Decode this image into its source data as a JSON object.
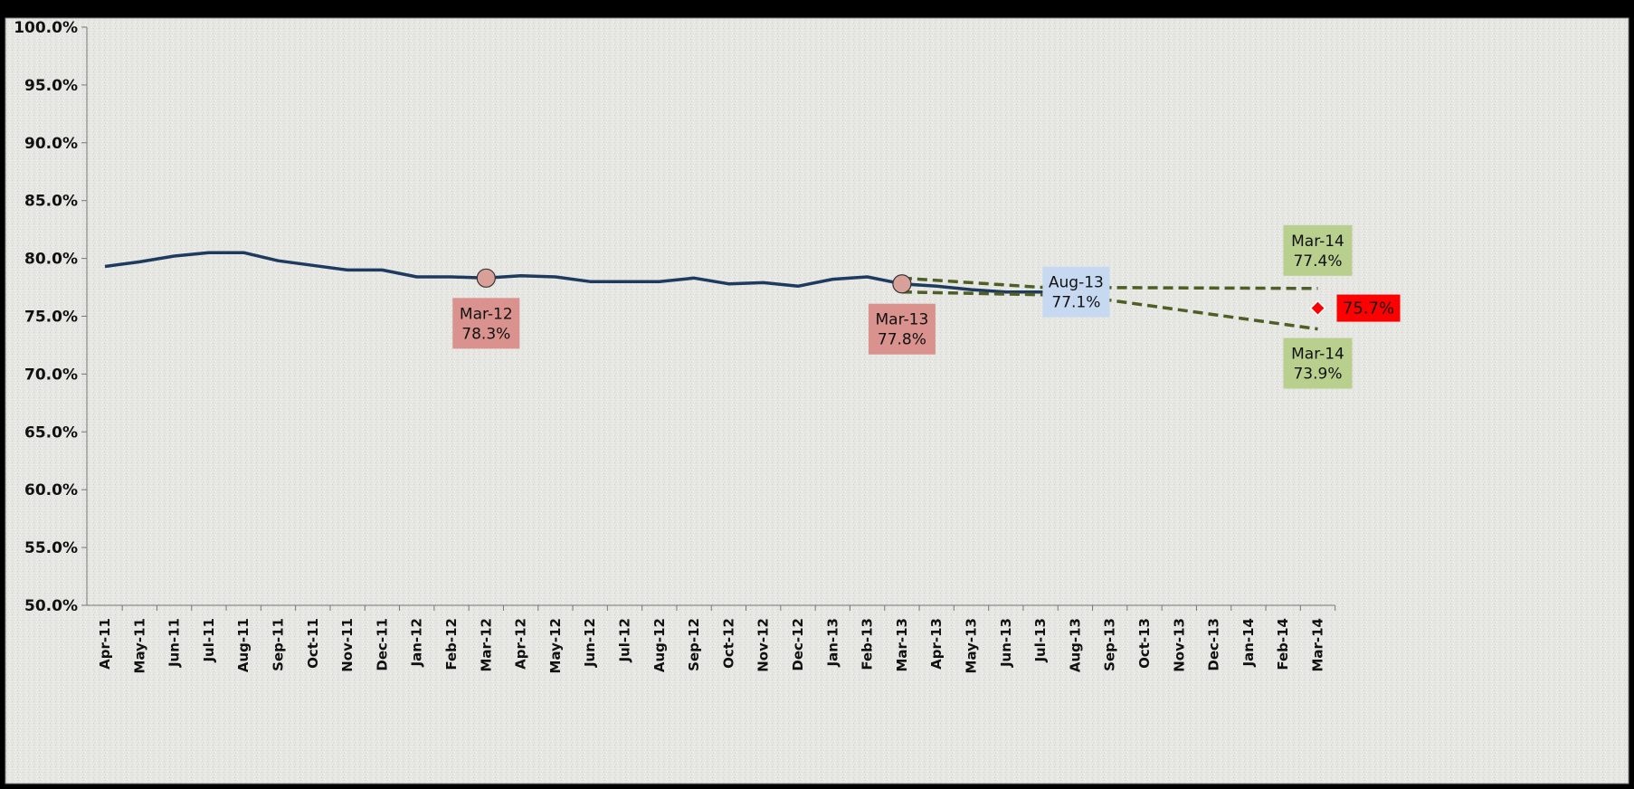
{
  "chart_data": {
    "type": "line",
    "title": "",
    "xlabel": "",
    "ylabel": "",
    "ylim": [
      0.5,
      1.0
    ],
    "y_ticks": [
      "50.0%",
      "55.0%",
      "60.0%",
      "65.0%",
      "70.0%",
      "75.0%",
      "80.0%",
      "85.0%",
      "90.0%",
      "95.0%",
      "100.0%"
    ],
    "y_tick_values": [
      0.5,
      0.55,
      0.6,
      0.65,
      0.7,
      0.75,
      0.8,
      0.85,
      0.9,
      0.95,
      1.0
    ],
    "categories": [
      "Apr-11",
      "May-11",
      "Jun-11",
      "Jul-11",
      "Aug-11",
      "Sep-11",
      "Oct-11",
      "Nov-11",
      "Dec-11",
      "Jan-12",
      "Feb-12",
      "Mar-12",
      "Apr-12",
      "May-12",
      "Jun-12",
      "Jul-12",
      "Aug-12",
      "Sep-12",
      "Oct-12",
      "Nov-12",
      "Dec-12",
      "Jan-13",
      "Feb-13",
      "Mar-13",
      "Apr-13",
      "May-13",
      "Jun-13",
      "Jul-13",
      "Aug-13",
      "Sep-13",
      "Oct-13",
      "Nov-13",
      "Dec-13",
      "Jan-14",
      "Feb-14",
      "Mar-14"
    ],
    "grid": false,
    "series": [
      {
        "color": "#1f3a5f",
        "style": "solid",
        "values": [
          0.793,
          0.797,
          0.802,
          0.805,
          0.805,
          0.798,
          0.794,
          0.79,
          0.79,
          0.784,
          0.784,
          0.783,
          0.785,
          0.784,
          0.78,
          0.78,
          0.78,
          0.783,
          0.778,
          0.779,
          0.776,
          0.782,
          0.784,
          0.778,
          0.776,
          0.773,
          0.771,
          0.771,
          0.771,
          null,
          null,
          null,
          null,
          null,
          null,
          null
        ]
      },
      {
        "color": "#4e5e24",
        "style": "dashed",
        "points": [
          [
            "Mar-13",
            0.783
          ],
          [
            "Jul-13",
            0.775
          ],
          [
            "Mar-14",
            0.774
          ]
        ]
      },
      {
        "color": "#4e5e24",
        "style": "dashed",
        "points": [
          [
            "Mar-13",
            0.771
          ],
          [
            "Aug-13",
            0.768
          ],
          [
            "Mar-14",
            0.739
          ]
        ]
      }
    ],
    "markers": [
      {
        "x": "Mar-12",
        "y": 0.783,
        "shape": "circle",
        "color": "#d9a09a"
      },
      {
        "x": "Mar-13",
        "y": 0.778,
        "shape": "circle",
        "color": "#d9a09a"
      },
      {
        "x": "Mar-14",
        "y": 0.757,
        "shape": "diamond",
        "color": "#ff0000"
      }
    ],
    "annotations": [
      {
        "lines": [
          "Mar-12",
          "78.3%"
        ],
        "at": "Mar-12",
        "y_value": 0.783,
        "fill": "#d9928d"
      },
      {
        "lines": [
          "Mar-13",
          "77.8%"
        ],
        "at": "Mar-13",
        "y_value": 0.778,
        "fill": "#d9928d"
      },
      {
        "lines": [
          "Aug-13",
          "77.1%"
        ],
        "at": "Aug-13",
        "y_value": 0.771,
        "fill": "#c6d9f1"
      },
      {
        "lines": [
          "Mar-14",
          "77.4%"
        ],
        "at": "Mar-14",
        "y_value": 0.774,
        "fill": "#b8cf8e"
      },
      {
        "lines": [
          "Mar-14",
          "73.9%"
        ],
        "at": "Mar-14",
        "y_value": 0.739,
        "fill": "#b8cf8e"
      },
      {
        "lines": [
          "75.7%"
        ],
        "at": "Mar-14",
        "y_value": 0.757,
        "fill": "#ff0000"
      }
    ]
  }
}
